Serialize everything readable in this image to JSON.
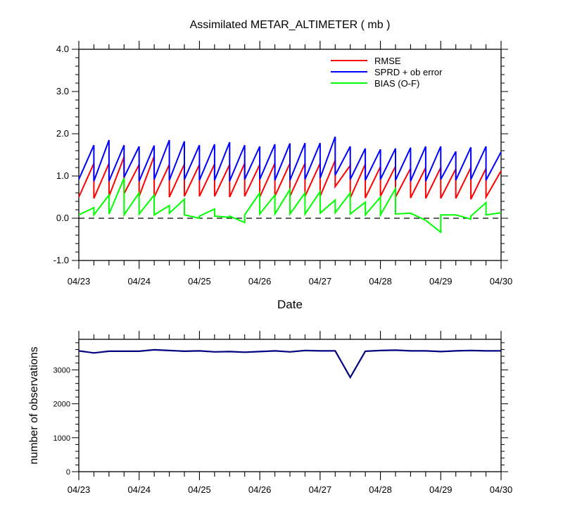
{
  "chart_data": [
    {
      "type": "line",
      "title": "Assimilated METAR_ALTIMETER ( mb )",
      "xlabel": "Date",
      "ylabel": "",
      "ylim": [
        -1.0,
        4.0
      ],
      "yticks": [
        "-1.0",
        "0.0",
        "1.0",
        "2.0",
        "3.0",
        "4.0"
      ],
      "xticks": [
        "04/23",
        "04/24",
        "04/25",
        "04/26",
        "04/27",
        "04/28",
        "04/29",
        "04/30"
      ],
      "x_unit": "days since 04/23 00Z",
      "reference_line": 0.0,
      "legend": "top-right",
      "series": [
        {
          "name": "RMSE",
          "color": "#ff0000",
          "values": [
            [
              0.0,
              0.5
            ],
            [
              0.25,
              1.3
            ],
            [
              0.25,
              0.47
            ],
            [
              0.5,
              1.3
            ],
            [
              0.5,
              0.52
            ],
            [
              0.75,
              1.45
            ],
            [
              0.75,
              0.58
            ],
            [
              1.0,
              1.27
            ],
            [
              1.0,
              0.52
            ],
            [
              1.25,
              1.47
            ],
            [
              1.25,
              0.5
            ],
            [
              1.5,
              1.27
            ],
            [
              1.5,
              0.5
            ],
            [
              1.75,
              1.28
            ],
            [
              1.75,
              0.52
            ],
            [
              2.0,
              1.27
            ],
            [
              2.0,
              0.52
            ],
            [
              2.25,
              1.28
            ],
            [
              2.25,
              0.52
            ],
            [
              2.5,
              1.27
            ],
            [
              2.5,
              0.5
            ],
            [
              2.75,
              1.3
            ],
            [
              2.75,
              0.52
            ],
            [
              3.0,
              1.27
            ],
            [
              3.0,
              0.5
            ],
            [
              3.25,
              1.3
            ],
            [
              3.25,
              0.52
            ],
            [
              3.5,
              1.3
            ],
            [
              3.5,
              0.52
            ],
            [
              3.75,
              1.3
            ],
            [
              3.75,
              0.52
            ],
            [
              4.0,
              1.3
            ],
            [
              4.0,
              0.52
            ],
            [
              4.25,
              1.37
            ],
            [
              4.25,
              0.75
            ],
            [
              4.5,
              1.25
            ],
            [
              4.5,
              0.48
            ],
            [
              4.75,
              1.28
            ],
            [
              4.75,
              0.48
            ],
            [
              5.0,
              1.22
            ],
            [
              5.0,
              0.52
            ],
            [
              5.25,
              1.23
            ],
            [
              5.25,
              0.5
            ],
            [
              5.5,
              1.18
            ],
            [
              5.5,
              0.48
            ],
            [
              5.75,
              1.2
            ],
            [
              5.75,
              0.47
            ],
            [
              6.0,
              1.2
            ],
            [
              6.0,
              0.47
            ],
            [
              6.25,
              1.17
            ],
            [
              6.25,
              0.47
            ],
            [
              6.5,
              1.2
            ],
            [
              6.5,
              0.45
            ],
            [
              6.75,
              1.18
            ],
            [
              6.75,
              0.5
            ],
            [
              7.0,
              1.12
            ]
          ]
        },
        {
          "name": "SPRD + ob error",
          "color": "#0000ff",
          "values": [
            [
              0.0,
              0.92
            ],
            [
              0.25,
              1.73
            ],
            [
              0.25,
              0.88
            ],
            [
              0.5,
              1.85
            ],
            [
              0.5,
              0.88
            ],
            [
              0.75,
              1.73
            ],
            [
              0.75,
              0.97
            ],
            [
              1.0,
              1.7
            ],
            [
              1.0,
              0.88
            ],
            [
              1.25,
              1.72
            ],
            [
              1.25,
              0.92
            ],
            [
              1.5,
              1.85
            ],
            [
              1.5,
              0.9
            ],
            [
              1.75,
              1.82
            ],
            [
              1.75,
              0.92
            ],
            [
              2.0,
              1.73
            ],
            [
              2.0,
              0.9
            ],
            [
              2.25,
              1.75
            ],
            [
              2.25,
              0.9
            ],
            [
              2.5,
              1.8
            ],
            [
              2.5,
              0.88
            ],
            [
              2.75,
              1.73
            ],
            [
              2.75,
              0.92
            ],
            [
              3.0,
              1.7
            ],
            [
              3.0,
              0.92
            ],
            [
              3.25,
              1.75
            ],
            [
              3.25,
              0.9
            ],
            [
              3.5,
              1.77
            ],
            [
              3.5,
              0.9
            ],
            [
              3.75,
              1.78
            ],
            [
              3.75,
              0.92
            ],
            [
              4.0,
              1.78
            ],
            [
              4.0,
              0.95
            ],
            [
              4.25,
              1.93
            ],
            [
              4.25,
              1.02
            ],
            [
              4.5,
              1.7
            ],
            [
              4.5,
              0.92
            ],
            [
              4.75,
              1.65
            ],
            [
              4.75,
              0.9
            ],
            [
              5.0,
              1.63
            ],
            [
              5.0,
              0.92
            ],
            [
              5.25,
              1.65
            ],
            [
              5.25,
              0.9
            ],
            [
              5.5,
              1.67
            ],
            [
              5.5,
              0.88
            ],
            [
              5.75,
              1.7
            ],
            [
              5.75,
              0.88
            ],
            [
              6.0,
              1.7
            ],
            [
              6.0,
              0.92
            ],
            [
              6.25,
              1.58
            ],
            [
              6.25,
              0.9
            ],
            [
              6.5,
              1.68
            ],
            [
              6.5,
              0.92
            ],
            [
              6.75,
              1.7
            ],
            [
              6.75,
              0.9
            ],
            [
              7.0,
              1.57
            ]
          ]
        },
        {
          "name": "BIAS (O-F)",
          "color": "#00ff00",
          "values": [
            [
              0.0,
              0.08
            ],
            [
              0.25,
              0.25
            ],
            [
              0.25,
              0.08
            ],
            [
              0.5,
              0.55
            ],
            [
              0.5,
              0.1
            ],
            [
              0.75,
              0.95
            ],
            [
              0.75,
              0.08
            ],
            [
              1.0,
              0.6
            ],
            [
              1.0,
              0.1
            ],
            [
              1.25,
              0.55
            ],
            [
              1.25,
              0.08
            ],
            [
              1.5,
              0.3
            ],
            [
              1.5,
              0.12
            ],
            [
              1.75,
              0.45
            ],
            [
              1.75,
              0.08
            ],
            [
              2.0,
              0.0
            ],
            [
              2.0,
              0.05
            ],
            [
              2.25,
              0.22
            ],
            [
              2.25,
              0.05
            ],
            [
              2.5,
              0.02
            ],
            [
              2.5,
              0.05
            ],
            [
              2.75,
              -0.1
            ],
            [
              2.75,
              0.08
            ],
            [
              3.0,
              0.6
            ],
            [
              3.0,
              0.1
            ],
            [
              3.25,
              0.55
            ],
            [
              3.25,
              0.1
            ],
            [
              3.5,
              0.68
            ],
            [
              3.5,
              0.1
            ],
            [
              3.75,
              0.6
            ],
            [
              3.75,
              0.1
            ],
            [
              4.0,
              0.63
            ],
            [
              4.0,
              0.12
            ],
            [
              4.25,
              0.43
            ],
            [
              4.25,
              0.13
            ],
            [
              4.5,
              0.6
            ],
            [
              4.5,
              0.1
            ],
            [
              4.75,
              0.38
            ],
            [
              4.75,
              0.08
            ],
            [
              5.0,
              0.5
            ],
            [
              5.0,
              0.08
            ],
            [
              5.25,
              0.7
            ],
            [
              5.25,
              0.1
            ],
            [
              5.5,
              0.12
            ],
            [
              5.5,
              0.12
            ],
            [
              5.75,
              -0.05
            ],
            [
              6.0,
              -0.33
            ],
            [
              6.0,
              0.08
            ],
            [
              6.25,
              0.08
            ],
            [
              6.25,
              0.08
            ],
            [
              6.5,
              -0.02
            ],
            [
              6.5,
              0.05
            ],
            [
              6.75,
              0.37
            ],
            [
              6.75,
              0.08
            ],
            [
              7.0,
              0.13
            ]
          ]
        }
      ]
    },
    {
      "type": "line",
      "title": "",
      "xlabel": "",
      "ylabel": "number of observations",
      "ylim": [
        0,
        3900
      ],
      "yticks": [
        "0",
        "1000",
        "2000",
        "3000"
      ],
      "xticks": [
        "04/23",
        "04/24",
        "04/25",
        "04/26",
        "04/27",
        "04/28",
        "04/29",
        "04/30"
      ],
      "x_unit": "days since 04/23 00Z",
      "series": [
        {
          "name": "",
          "color": "#000080",
          "x": [
            0,
            0.25,
            0.5,
            0.75,
            1.0,
            1.25,
            1.5,
            1.75,
            2.0,
            2.25,
            2.5,
            2.75,
            3.0,
            3.25,
            3.5,
            3.75,
            4.0,
            4.25,
            4.5,
            4.75,
            5.0,
            5.25,
            5.5,
            5.75,
            6.0,
            6.25,
            6.5,
            6.75,
            7.0
          ],
          "values": [
            3560,
            3500,
            3550,
            3550,
            3550,
            3590,
            3570,
            3550,
            3560,
            3530,
            3540,
            3520,
            3540,
            3560,
            3530,
            3570,
            3560,
            3560,
            2780,
            3550,
            3570,
            3580,
            3560,
            3560,
            3540,
            3560,
            3570,
            3560,
            3560
          ]
        }
      ]
    }
  ]
}
